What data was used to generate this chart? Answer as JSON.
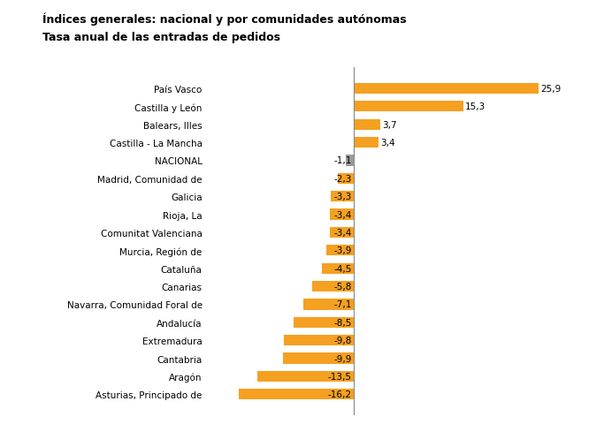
{
  "title_line1": "Índices generales: nacional y por comunidades autónomas",
  "title_line2": "Tasa anual de las entradas de pedidos",
  "categories": [
    "País Vasco",
    "Castilla y León",
    "Balears, Illes",
    "Castilla - La Mancha",
    "NACIONAL",
    "Madrid, Comunidad de",
    "Galicia",
    "Rioja, La",
    "Comunitat Valenciana",
    "Murcia, Región de",
    "Cataluña",
    "Canarias",
    "Navarra, Comunidad Foral de",
    "Andalucía",
    "Extremadura",
    "Cantabria",
    "Aragón",
    "Asturias, Principado de"
  ],
  "values": [
    25.9,
    15.3,
    3.7,
    3.4,
    -1.1,
    -2.3,
    -3.3,
    -3.4,
    -3.4,
    -3.9,
    -4.5,
    -5.8,
    -7.1,
    -8.5,
    -9.8,
    -9.9,
    -13.5,
    -16.2
  ],
  "bar_color_orange": "#F5A020",
  "bar_color_gray": "#999999",
  "nacional_index": 4,
  "background_color": "#ffffff",
  "label_fontsize": 7.5,
  "title_fontsize": 9.0,
  "value_fontsize": 7.5,
  "xlim": [
    -20,
    30
  ]
}
